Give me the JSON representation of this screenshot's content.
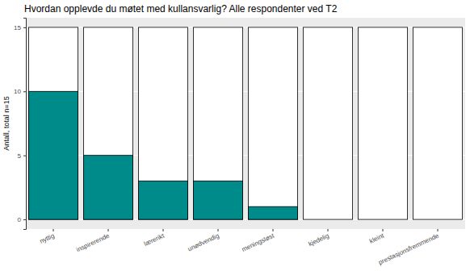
{
  "chart_data": {
    "type": "bar",
    "title": "Hvordan opplevde du møtet med kullansvarlig? Alle respondenter ved T2",
    "y_label": "Antall, total n=15",
    "categories": [
      "nyttig",
      "inspirerende",
      "lærerikt",
      "unødvendig",
      "meningsløst",
      "kjedelig",
      "kleint",
      "prestasjonsfremmende"
    ],
    "values": [
      10,
      5,
      3,
      3,
      1,
      0,
      0,
      0
    ],
    "totals": [
      15,
      15,
      15,
      15,
      15,
      15,
      15,
      15
    ],
    "color": "#008b8b",
    "ylim": [
      -0.75,
      15.75
    ],
    "yticks": [
      0,
      5,
      10,
      15
    ],
    "grid": true
  }
}
